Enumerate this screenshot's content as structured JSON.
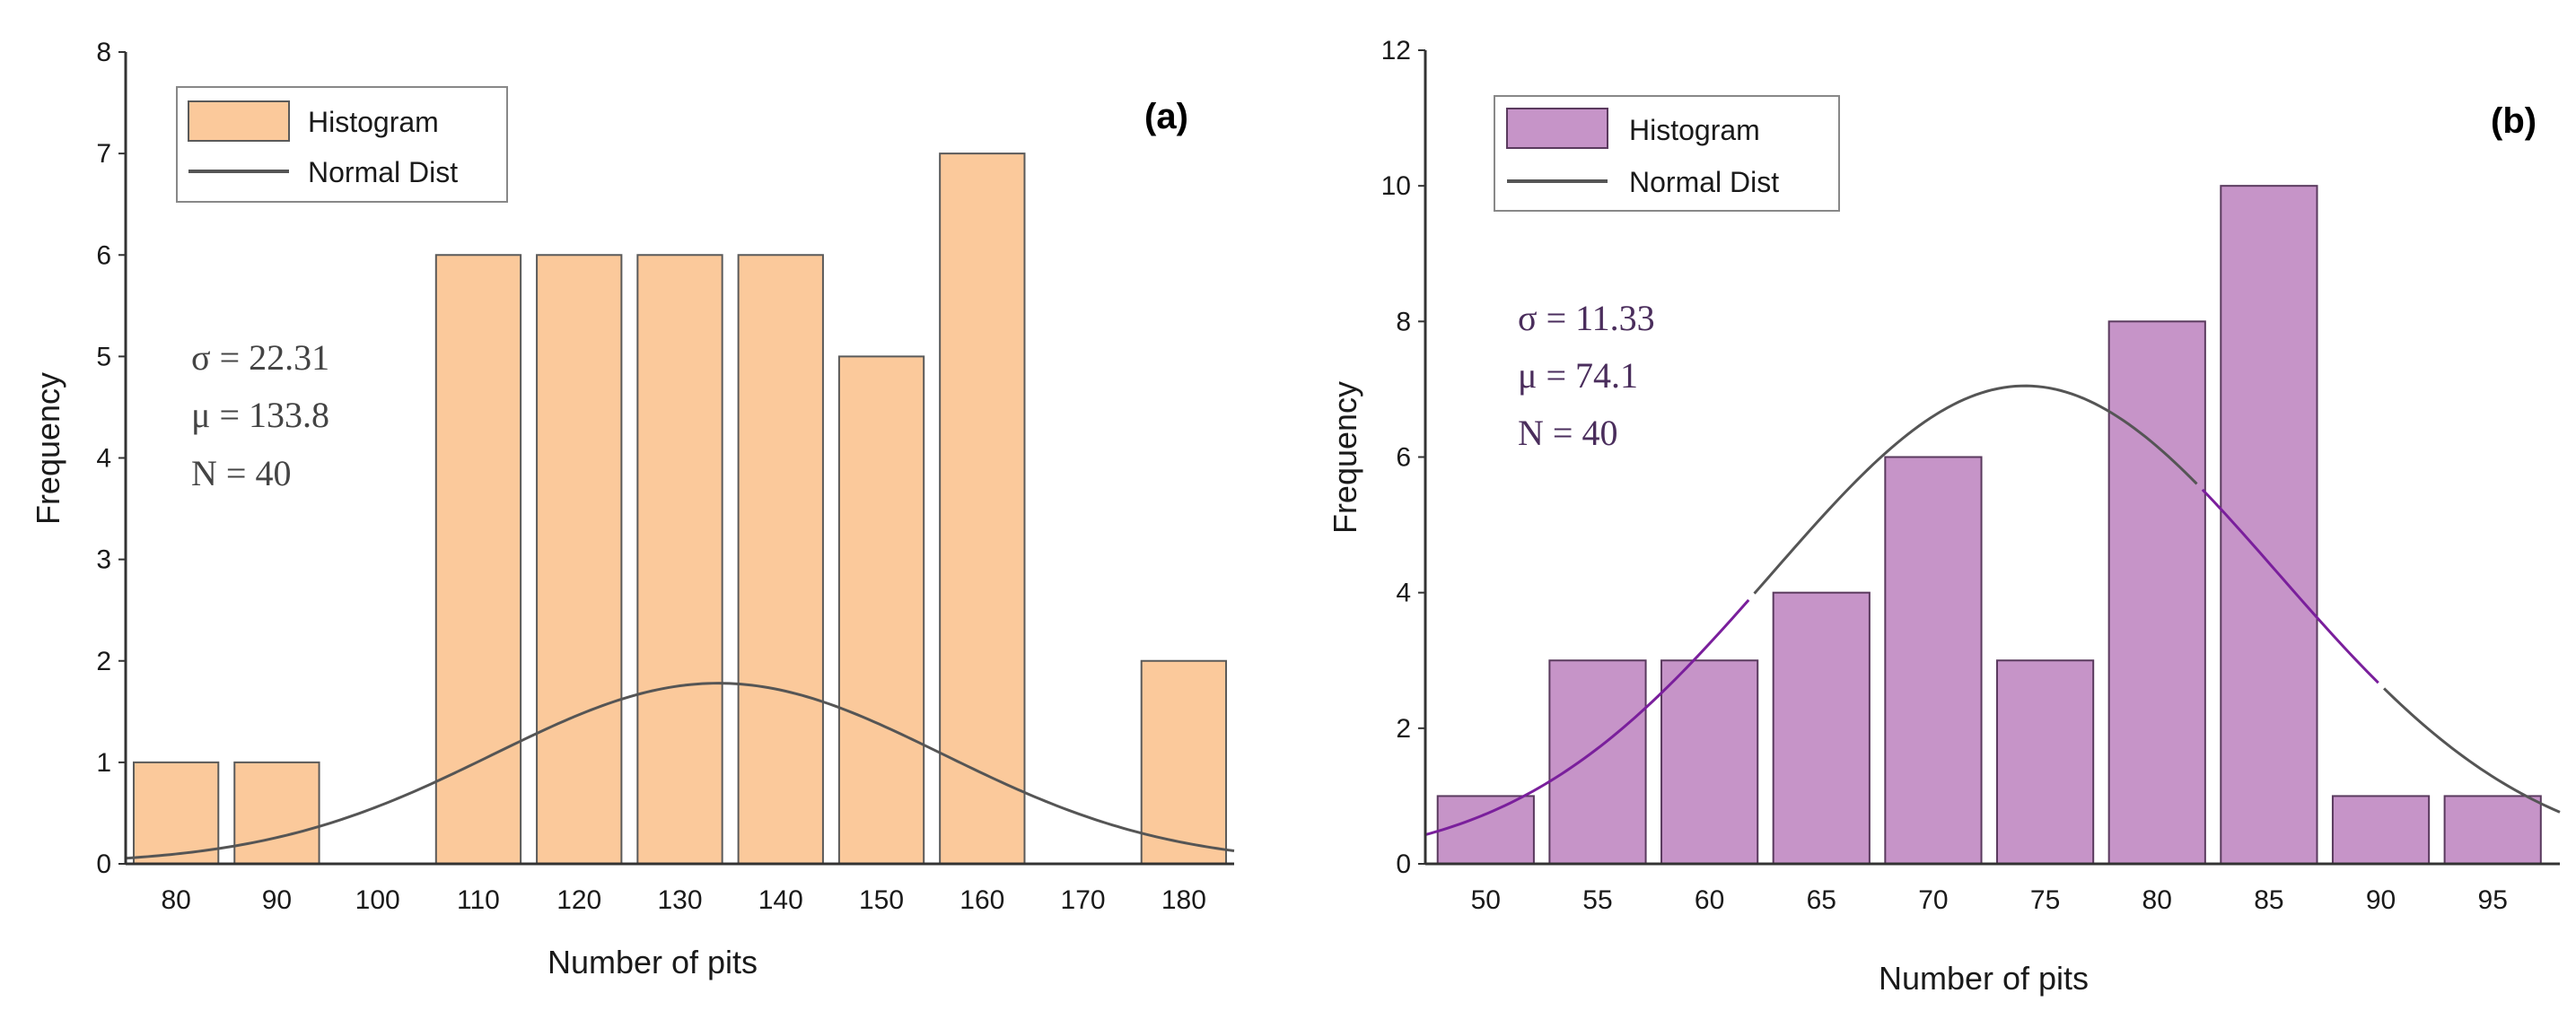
{
  "chart_data": [
    {
      "type": "bar",
      "panel_label": "(a)",
      "xlabel": "Number of pits",
      "ylabel": "Frequency",
      "categories": [
        "80",
        "90",
        "100",
        "110",
        "120",
        "130",
        "140",
        "150",
        "160",
        "170",
        "180"
      ],
      "series": [
        {
          "name": "Histogram",
          "values": [
            1,
            1,
            0,
            6,
            6,
            6,
            6,
            5,
            7,
            0,
            2
          ]
        },
        {
          "name": "Normal Dist",
          "type": "line",
          "mean": 133.8,
          "sd": 22.31,
          "peak": 1.78,
          "x_range": [
            75,
            185
          ]
        }
      ],
      "x_range": [
        75,
        185
      ],
      "ylim": [
        0,
        8
      ],
      "yticks": [
        "0",
        "1",
        "2",
        "3",
        "4",
        "5",
        "6",
        "7",
        "8"
      ],
      "legend": [
        "Histogram",
        "Normal Dist"
      ],
      "annotations": [
        "σ = 22.31",
        "μ = 133.8",
        "N = 40"
      ],
      "colors": {
        "bar_fill": "#fbc99b",
        "bar_stroke": "#5a5a5a",
        "curve": "#555555",
        "annotation": "#444444"
      }
    },
    {
      "type": "bar",
      "panel_label": "(b)",
      "xlabel": "Number of pits",
      "ylabel": "Frequency",
      "categories": [
        "50",
        "55",
        "60",
        "65",
        "70",
        "75",
        "80",
        "85",
        "90",
        "95"
      ],
      "series": [
        {
          "name": "Histogram",
          "values": [
            1,
            3,
            3,
            4,
            6,
            3,
            8,
            10,
            1,
            1
          ]
        },
        {
          "name": "Normal Dist",
          "type": "line",
          "mean": 74.1,
          "sd": 11.33,
          "peak": 7.05,
          "x_range": [
            47.3,
            98
          ]
        }
      ],
      "x_range": [
        47.3,
        98
      ],
      "ylim": [
        0,
        12
      ],
      "yticks": [
        "0",
        "2",
        "4",
        "6",
        "8",
        "10",
        "12"
      ],
      "legend": [
        "Histogram",
        "Normal Dist"
      ],
      "annotations": [
        "σ = 11.33",
        "μ = 74.1",
        "N = 40"
      ],
      "colors": {
        "bar_fill": "#c694c8",
        "bar_stroke": "#5a3a5e",
        "curve": "#555555",
        "curve_highlight": "#7a1f9c",
        "annotation": "#4a2d5c"
      }
    }
  ]
}
